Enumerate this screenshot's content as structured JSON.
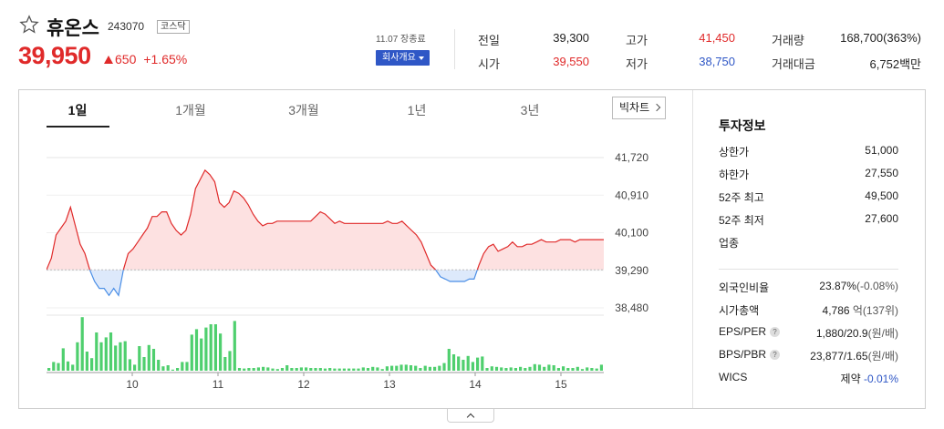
{
  "stock": {
    "name": "휴온스",
    "code": "243070",
    "market": "코스닥",
    "price": "39,950",
    "change": "650",
    "change_rate": "+1.65%",
    "date_label": "11.07 장종료",
    "company_info_label": "회사개요"
  },
  "quotes": {
    "prev_close_label": "전일",
    "prev_close": "39,300",
    "open_label": "시가",
    "open": "39,550",
    "high_label": "고가",
    "high": "41,450",
    "low_label": "저가",
    "low": "38,750",
    "volume_label": "거래량",
    "volume": "168,700(363%)",
    "amount_label": "거래대금",
    "amount": "6,752백만"
  },
  "tabs": [
    "1일",
    "1개월",
    "3개월",
    "1년",
    "3년"
  ],
  "bigchart_label": "빅차트",
  "investment": {
    "title": "투자정보",
    "upper_limit_label": "상한가",
    "upper_limit": "51,000",
    "lower_limit_label": "하한가",
    "lower_limit": "27,550",
    "w52_high_label": "52주 최고",
    "w52_high": "49,500",
    "w52_low_label": "52주 최저",
    "w52_low": "27,600",
    "sector_label": "업종",
    "foreign_label": "외국인비율",
    "foreign": "23.87%",
    "foreign_change": "(-0.08%)",
    "mktcap_label": "시가총액",
    "mktcap": "4,786",
    "mktcap_unit": "억(137위)",
    "eps_label": "EPS/PER",
    "eps": "1,880/20.9",
    "eps_unit": "(원/배)",
    "bps_label": "BPS/PBR",
    "bps": "23,877/1.65",
    "bps_unit": "(원/배)",
    "wics_label": "WICS",
    "wics": "제약",
    "wics_change": "-0.01%"
  },
  "colors": {
    "up": "#e02a2a",
    "down": "#2f57c6",
    "volume": "#4fcf6e",
    "area_up": "#fde1e1",
    "area_down": "#dde9fb"
  },
  "chart_data": {
    "type": "line",
    "baseline": 39300,
    "ylim": [
      38480,
      41720
    ],
    "y_ticks": [
      "41,720",
      "40,910",
      "40,100",
      "39,290",
      "38,480"
    ],
    "y_tick_values": [
      41720,
      40910,
      40100,
      39290,
      38480
    ],
    "x_ticks": [
      "10",
      "11",
      "12",
      "13",
      "14",
      "15"
    ],
    "x_tick_hours": [
      10,
      11,
      12,
      13,
      14,
      15
    ],
    "time_start": 9.0,
    "time_end": 15.5,
    "prices": [
      39300,
      39550,
      40050,
      40200,
      40350,
      40650,
      40250,
      39850,
      39650,
      39300,
      39050,
      38900,
      38900,
      38750,
      38900,
      38750,
      39300,
      39650,
      39750,
      39900,
      40050,
      40200,
      40450,
      40450,
      40550,
      40550,
      40300,
      40150,
      40050,
      40150,
      40500,
      41050,
      41250,
      41450,
      41350,
      41200,
      40750,
      40650,
      40750,
      41000,
      40950,
      40850,
      40700,
      40500,
      40350,
      40250,
      40300,
      40300,
      40350,
      40350,
      40350,
      40350,
      40350,
      40350,
      40350,
      40350,
      40450,
      40550,
      40500,
      40400,
      40300,
      40350,
      40300,
      40300,
      40300,
      40300,
      40300,
      40300,
      40300,
      40300,
      40300,
      40350,
      40300,
      40300,
      40350,
      40250,
      40150,
      40050,
      39900,
      39650,
      39400,
      39300,
      39150,
      39100,
      39050,
      39050,
      39050,
      39050,
      39100,
      39100,
      39400,
      39650,
      39800,
      39850,
      39700,
      39750,
      39800,
      39900,
      39800,
      39800,
      39850,
      39850,
      39900,
      39950,
      39900,
      39900,
      39900,
      39950,
      39950,
      39950,
      39900,
      39950,
      39950,
      39950,
      39950,
      39950,
      39950
    ],
    "volumes": [
      0.05,
      0.16,
      0.14,
      0.41,
      0.17,
      0.11,
      0.52,
      0.98,
      0.35,
      0.23,
      0.7,
      0.52,
      0.61,
      0.7,
      0.46,
      0.52,
      0.54,
      0.21,
      0.11,
      0.45,
      0.25,
      0.47,
      0.4,
      0.2,
      0.08,
      0.1,
      0.02,
      0.05,
      0.16,
      0.16,
      0.66,
      0.76,
      0.59,
      0.79,
      0.85,
      0.85,
      0.68,
      0.25,
      0.36,
      0.91,
      0.05,
      0.04,
      0.05,
      0.05,
      0.06,
      0.07,
      0.06,
      0.04,
      0.03,
      0.05,
      0.1,
      0.05,
      0.05,
      0.06,
      0.06,
      0.05,
      0.05,
      0.05,
      0.04,
      0.05,
      0.04,
      0.04,
      0.04,
      0.04,
      0.04,
      0.04,
      0.06,
      0.05,
      0.07,
      0.06,
      0.03,
      0.08,
      0.09,
      0.09,
      0.11,
      0.11,
      0.1,
      0.09,
      0.05,
      0.09,
      0.07,
      0.07,
      0.09,
      0.14,
      0.4,
      0.3,
      0.26,
      0.2,
      0.27,
      0.16,
      0.24,
      0.26,
      0.05,
      0.08,
      0.07,
      0.06,
      0.05,
      0.06,
      0.05,
      0.07,
      0.05,
      0.07,
      0.12,
      0.11,
      0.07,
      0.11,
      0.1,
      0.05,
      0.08,
      0.05,
      0.05,
      0.07,
      0.03,
      0.06,
      0.05,
      0.04,
      0.11
    ]
  }
}
